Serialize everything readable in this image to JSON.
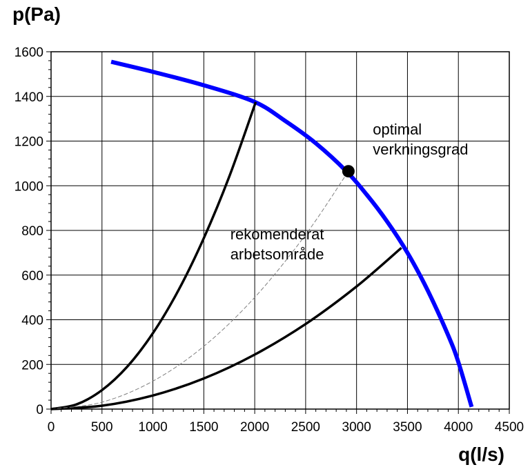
{
  "chart_data": {
    "type": "line",
    "title": "",
    "xlabel": "q(l/s)",
    "ylabel": "p(Pa)",
    "xlim": [
      0,
      4500
    ],
    "ylim": [
      0,
      1600
    ],
    "x_major_step": 500,
    "y_major_step": 200,
    "x_ticks": [
      0,
      500,
      1000,
      1500,
      2000,
      2500,
      3000,
      3500,
      4000,
      4500
    ],
    "y_ticks": [
      0,
      200,
      400,
      600,
      800,
      1000,
      1200,
      1400,
      1600
    ],
    "grid": true,
    "series": [
      {
        "color": "#0000ff",
        "style": "solid",
        "x": [
          590,
          1000,
          1500,
          2000,
          2300,
          2600,
          2900,
          3100,
          3300,
          3500,
          3700,
          3900,
          4000,
          4130
        ],
        "y": [
          1555,
          1510,
          1450,
          1375,
          1290,
          1190,
          1065,
          960,
          840,
          700,
          530,
          330,
          210,
          10
        ]
      },
      {
        "color": "#000000",
        "style": "solid",
        "x": [
          0,
          250,
          500,
          750,
          1000,
          1250,
          1500,
          1750,
          2010
        ],
        "y": [
          0,
          21,
          85,
          191,
          340,
          531,
          765,
          1041,
          1375
        ]
      },
      {
        "color": "#000000",
        "style": "solid",
        "x": [
          0,
          500,
          1000,
          1500,
          2000,
          2500,
          3000,
          3440
        ],
        "y": [
          0,
          15,
          61,
          137,
          244,
          381,
          549,
          722
        ]
      },
      {
        "color": "#7f7f7f",
        "style": "dashed",
        "x": [
          0,
          500,
          1000,
          1500,
          2000,
          2500,
          2920
        ],
        "y": [
          0,
          31,
          125,
          281,
          500,
          781,
          1065
        ]
      }
    ],
    "points": [
      {
        "x": 2920,
        "y": 1065,
        "color": "#000000"
      }
    ],
    "annotations": [
      {
        "lines": [
          "optimal",
          "verkningsgrad"
        ],
        "x": 3160,
        "y": 1230
      },
      {
        "lines": [
          "rekomenderat",
          "arbetsområde"
        ],
        "x": 1760,
        "y": 760
      }
    ]
  }
}
